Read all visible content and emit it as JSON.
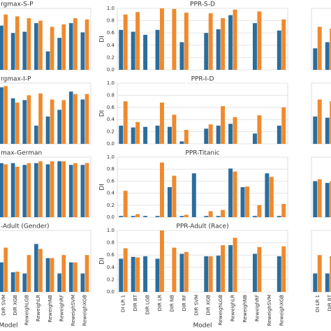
{
  "chart_data": [
    {
      "type": "bar",
      "title": "rgmax-S-P",
      "categories": [
        null,
        null,
        null,
        null,
        null,
        null,
        null,
        null
      ],
      "ylim": [
        0,
        1
      ],
      "series": [
        {
          "color": "#2b6d9e",
          "values": [
            0.72,
            0.6,
            0.62,
            0.76,
            0.3,
            0.52,
            0.76,
            0.61
          ]
        },
        {
          "color": "#ef8a2e",
          "values": [
            0.9,
            0.87,
            0.84,
            0.8,
            0.7,
            0.74,
            0.84,
            0.82
          ]
        }
      ]
    },
    {
      "type": "bar",
      "title": "PPR-S-D",
      "ylabel": "DI",
      "categories": [
        null,
        null,
        null,
        null,
        null,
        null,
        null,
        null,
        null,
        null,
        null,
        null,
        null,
        null
      ],
      "ylim": [
        0,
        1
      ],
      "yticks": [
        {
          "value": 0,
          "label": "0.0"
        },
        0.2,
        0.4,
        0.6,
        0.8,
        {
          "value": 1,
          "label": "1.0"
        }
      ],
      "grid": true,
      "series": [
        {
          "color": "#2b6d9e",
          "values": [
            0.65,
            0.62,
            0.57,
            0.65,
            null,
            0.45,
            null,
            0.6,
            0.66,
            0.89,
            null,
            0.76,
            null,
            0.64
          ]
        },
        {
          "color": "#ef8a2e",
          "values": [
            0.9,
            0.94,
            null,
            1.0,
            0.99,
            0.93,
            null,
            0.92,
            0.84,
            0.98,
            null,
            0.95,
            null,
            0.82
          ]
        }
      ]
    },
    {
      "type": "bar",
      "categories": [
        null,
        null
      ],
      "ylim": [
        0,
        1
      ],
      "series": [
        {
          "color": "#2b6d9e",
          "values": [
            0.35,
            0.45
          ]
        },
        {
          "color": "#ef8a2e",
          "values": [
            0.7,
            0.67
          ]
        }
      ]
    },
    {
      "type": "bar",
      "title": "rgmax-I-P",
      "categories": [
        null,
        null,
        null,
        null,
        null,
        null,
        null,
        null
      ],
      "ylim": [
        0,
        1
      ],
      "series": [
        {
          "color": "#2b6d9e",
          "values": [
            0.93,
            0.75,
            0.72,
            0.3,
            0.45,
            0.56,
            0.86,
            0.73
          ]
        },
        {
          "color": "#ef8a2e",
          "values": [
            0.95,
            0.68,
            0.8,
            0.83,
            0.73,
            0.72,
            0.82,
            0.82
          ]
        }
      ]
    },
    {
      "type": "bar",
      "title": "PPR-I-D",
      "ylabel": "DI",
      "categories": [
        null,
        null,
        null,
        null,
        null,
        null,
        null,
        null,
        null,
        null,
        null,
        null,
        null,
        null
      ],
      "ylim": [
        0,
        1
      ],
      "yticks": [
        {
          "value": 0,
          "label": "0.0"
        },
        0.2,
        0.4,
        0.6,
        0.8,
        {
          "value": 1,
          "label": "1.0"
        }
      ],
      "grid": true,
      "series": [
        {
          "color": "#2b6d9e",
          "values": [
            0.3,
            0.27,
            0.28,
            0.3,
            0.28,
            0.04,
            null,
            0.25,
            0.3,
            0.33,
            null,
            0.17,
            null,
            0.3
          ]
        },
        {
          "color": "#ef8a2e",
          "values": [
            0.7,
            0.36,
            null,
            0.68,
            0.48,
            0.23,
            null,
            0.32,
            0.62,
            0.44,
            null,
            0.47,
            null,
            0.6
          ]
        }
      ]
    },
    {
      "type": "bar",
      "categories": [
        null,
        null
      ],
      "ylim": [
        0,
        1
      ],
      "series": [
        {
          "color": "#2b6d9e",
          "values": [
            0.45,
            0.43
          ]
        },
        {
          "color": "#ef8a2e",
          "values": [
            0.73,
            0.7
          ]
        }
      ]
    },
    {
      "type": "bar",
      "title": "max-German",
      "categories": [
        null,
        null,
        null,
        null,
        null,
        null,
        null,
        null
      ],
      "ylim": [
        0,
        1
      ],
      "series": [
        {
          "color": "#2b6d9e",
          "values": [
            0.9,
            0.9,
            0.87,
            0.9,
            0.88,
            0.93,
            0.87,
            0.87
          ]
        },
        {
          "color": "#ef8a2e",
          "values": [
            0.88,
            0.84,
            0.9,
            0.93,
            0.93,
            0.93,
            0.9,
            0.9
          ]
        }
      ]
    },
    {
      "type": "bar",
      "title": "PPR-Titanic",
      "ylabel": "DI",
      "categories": [
        null,
        null,
        null,
        null,
        null,
        null,
        null,
        null,
        null,
        null,
        null,
        null,
        null,
        null
      ],
      "ylim": [
        0,
        1
      ],
      "yticks": [
        {
          "value": 0,
          "label": "0.0"
        },
        0.2,
        0.4,
        0.6,
        0.8,
        {
          "value": 1,
          "label": "1.0"
        }
      ],
      "grid": true,
      "series": [
        {
          "color": "#2b6d9e",
          "values": [
            0.02,
            0.02,
            0.02,
            0.02,
            0.5,
            0.02,
            0.73,
            0.02,
            0.02,
            0.81,
            0.5,
            0.02,
            0.73,
            0.02
          ]
        },
        {
          "color": "#ef8a2e",
          "values": [
            0.44,
            0.05,
            null,
            0.91,
            0.69,
            0.04,
            null,
            0.1,
            0.12,
            0.76,
            0.51,
            0.2,
            0.67,
            0.22
          ]
        }
      ]
    },
    {
      "type": "bar",
      "categories": [
        null,
        null
      ],
      "ylim": [
        0,
        1
      ],
      "series": [
        {
          "color": "#2b6d9e",
          "values": [
            0.6,
            0.57
          ]
        },
        {
          "color": "#ef8a2e",
          "values": [
            0.63,
            0.6
          ]
        }
      ]
    },
    {
      "type": "bar",
      "title": "-Adult (Gender)",
      "xlabel": "Model",
      "categories": [
        "DIR SVM",
        "DIR XGB",
        "ReweighLGB",
        "ReweighLR",
        "ReweighNB",
        "ReweighRF",
        "ReweighSVM",
        "ReweighXGB"
      ],
      "ylim": [
        0,
        1
      ],
      "series": [
        {
          "color": "#2b6d9e",
          "values": [
            0.48,
            0.32,
            0.3,
            0.78,
            0.55,
            0.3,
            0.48,
            0.3
          ]
        },
        {
          "color": "#ef8a2e",
          "values": [
            0.72,
            0.33,
            0.6,
            0.7,
            0.55,
            0.6,
            0.48,
            0.6
          ]
        }
      ]
    },
    {
      "type": "bar",
      "title": "PPR-Adult (Race)",
      "ylabel": "DI",
      "xlabel": "Model",
      "categories": [
        "DI LR 1",
        "DIR BT",
        "DIR LGB",
        "DIR LR",
        "DIR NB",
        "DIR RF",
        "DIR SVM",
        "DIR XGB",
        "ReweighLGB",
        "ReweighLR",
        "ReweighNB",
        "ReweighRF",
        "ReweighSVM",
        "ReweighXGB"
      ],
      "ylim": [
        0,
        1
      ],
      "yticks": [
        {
          "value": 0,
          "label": "0.0"
        },
        0.2,
        0.4,
        0.6,
        0.8,
        {
          "value": 1,
          "label": "1.0"
        }
      ],
      "grid": true,
      "series": [
        {
          "color": "#2b6d9e",
          "values": [
            0.54,
            0.57,
            0.58,
            0.54,
            null,
            0.62,
            null,
            0.58,
            0.59,
            0.76,
            null,
            0.62,
            null,
            0.58
          ]
        },
        {
          "color": "#ef8a2e",
          "values": [
            0.71,
            0.56,
            null,
            1.0,
            0.72,
            0.65,
            null,
            0.58,
            0.76,
            0.88,
            null,
            0.73,
            null,
            0.74
          ]
        }
      ]
    },
    {
      "type": "bar",
      "categories": [
        "DI LR 1",
        "DIR BT"
      ],
      "ylim": [
        0,
        1
      ],
      "series": [
        {
          "color": "#2b6d9e",
          "values": [
            0.3,
            0.3
          ]
        },
        {
          "color": "#ef8a2e",
          "values": [
            0.6,
            0.58
          ]
        }
      ]
    }
  ]
}
